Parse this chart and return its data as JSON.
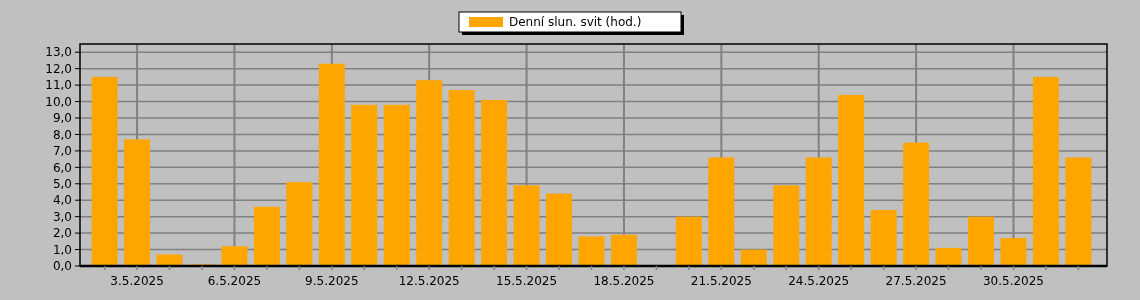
{
  "chart_data": {
    "type": "bar",
    "categories": [
      null,
      "3.5.2025",
      null,
      null,
      "6.5.2025",
      null,
      null,
      "9.5.2025",
      null,
      null,
      "12.5.2025",
      null,
      null,
      "15.5.2025",
      null,
      null,
      "18.5.2025",
      null,
      null,
      "21.5.2025",
      null,
      null,
      "24.5.2025",
      null,
      null,
      "27.5.2025",
      null,
      null,
      "30.5.2025",
      null,
      null
    ],
    "series": [
      {
        "name": "Denní slun. svit (hod.)",
        "color": "#ffa500",
        "values": [
          11.5,
          7.7,
          0.7,
          0.1,
          1.2,
          3.6,
          5.1,
          12.3,
          9.8,
          9.8,
          11.3,
          10.7,
          10.1,
          4.9,
          4.4,
          1.8,
          1.9,
          0,
          3.0,
          6.6,
          1.0,
          4.9,
          6.6,
          10.4,
          3.4,
          7.5,
          1.1,
          3.0,
          1.7,
          11.5,
          6.6
        ]
      }
    ],
    "ylim": [
      0,
      13.5
    ],
    "yticks": [
      {
        "value": 0,
        "label": "0,0"
      },
      {
        "value": 1,
        "label": "1,0"
      },
      {
        "value": 2,
        "label": "2,0"
      },
      {
        "value": 3,
        "label": "3,0"
      },
      {
        "value": 4,
        "label": "4,0"
      },
      {
        "value": 5,
        "label": "5,0"
      },
      {
        "value": 6,
        "label": "6,0"
      },
      {
        "value": 7,
        "label": "7,0"
      },
      {
        "value": 8,
        "label": "8,0"
      },
      {
        "value": 9,
        "label": "9,0"
      },
      {
        "value": 10,
        "label": "10,0"
      },
      {
        "value": 11,
        "label": "11,0"
      },
      {
        "value": 12,
        "label": "12,0"
      },
      {
        "value": 13,
        "label": "13,0"
      }
    ],
    "grid": true,
    "legend": "top"
  }
}
